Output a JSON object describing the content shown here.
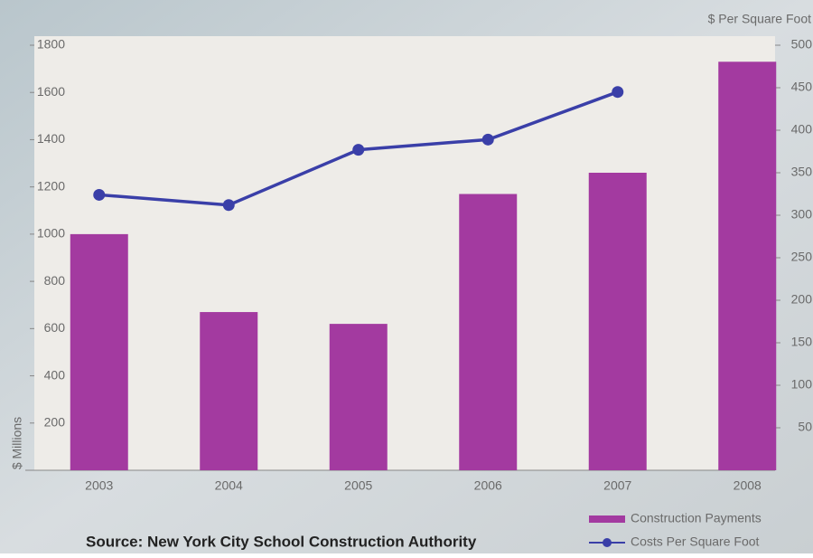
{
  "chart_data": {
    "type": "bar-line",
    "y_label": "$ Millions",
    "y2_label": "$ Per Square Foot",
    "source": "Source: New York City School Construction Authority",
    "categories": [
      "2003",
      "2004",
      "2005",
      "2006",
      "2007",
      "2008"
    ],
    "series": [
      {
        "name": "Construction Payments",
        "type": "bar",
        "color": "#a33aa0",
        "values": [
          1000,
          670,
          620,
          1170,
          1260,
          1730
        ]
      },
      {
        "name": "Costs Per Square Foot",
        "type": "line",
        "axis": "y2",
        "color": "#3a3fa8",
        "values": [
          324,
          312,
          377,
          389,
          445,
          null
        ]
      }
    ],
    "ylim": [
      0,
      1800
    ],
    "yticks": [
      200,
      400,
      600,
      800,
      1000,
      1200,
      1400,
      1600,
      1800
    ],
    "y2lim": [
      0,
      500
    ],
    "y2ticks": [
      50,
      100,
      150,
      200,
      250,
      300,
      350,
      400,
      450,
      500
    ],
    "legend": "bottom-right"
  }
}
